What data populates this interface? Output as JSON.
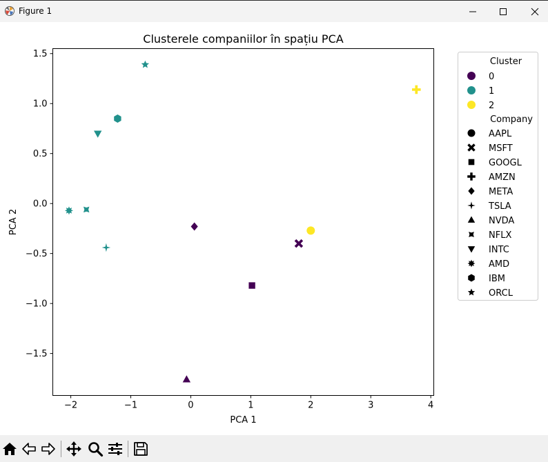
{
  "window": {
    "title": "Figure 1",
    "controls": [
      "minimize",
      "maximize",
      "close"
    ]
  },
  "toolbar": {
    "tools": [
      {
        "name": "home",
        "icon": "home-icon"
      },
      {
        "name": "back",
        "icon": "arrow-left-icon"
      },
      {
        "name": "forward",
        "icon": "arrow-right-icon"
      },
      {
        "name": "pan",
        "icon": "move-icon"
      },
      {
        "name": "zoom",
        "icon": "magnifier-icon"
      },
      {
        "name": "configure-subplots",
        "icon": "sliders-icon"
      },
      {
        "name": "save",
        "icon": "floppy-icon"
      }
    ]
  },
  "chart_data": {
    "type": "scatter",
    "title": "Clusterele companiilor în spațiu PCA",
    "xlabel": "PCA 1",
    "ylabel": "PCA 2",
    "xlim": [
      -2.3,
      4.05
    ],
    "ylim": [
      -1.92,
      1.55
    ],
    "xticks": [
      -2,
      -1,
      0,
      1,
      2,
      3,
      4
    ],
    "xtick_labels": [
      "−2",
      "−1",
      "0",
      "1",
      "2",
      "3",
      "4"
    ],
    "yticks": [
      1.5,
      1.0,
      0.5,
      0.0,
      -0.5,
      -1.0,
      -1.5
    ],
    "ytick_labels": [
      "1.5",
      "1.0",
      "0.5",
      "0.0",
      "−0.5",
      "−1.0",
      "−1.5"
    ],
    "grid": false,
    "legend_position": "outside-right",
    "cluster_colors": {
      "0": "#440154",
      "1": "#21918c",
      "2": "#fde725"
    },
    "points": [
      {
        "company": "AAPL",
        "marker": "circle",
        "cluster": 2,
        "x": 2.0,
        "y": -0.27
      },
      {
        "company": "MSFT",
        "marker": "x",
        "cluster": 0,
        "x": 1.8,
        "y": -0.4
      },
      {
        "company": "GOOGL",
        "marker": "square",
        "cluster": 0,
        "x": 1.02,
        "y": -0.82
      },
      {
        "company": "AMZN",
        "marker": "plus",
        "cluster": 2,
        "x": 3.76,
        "y": 1.14
      },
      {
        "company": "META",
        "marker": "diamond",
        "cluster": 0,
        "x": 0.06,
        "y": -0.23
      },
      {
        "company": "TSLA",
        "marker": "star4",
        "cluster": 1,
        "x": -1.41,
        "y": -0.44
      },
      {
        "company": "NVDA",
        "marker": "triangle-up",
        "cluster": 0,
        "x": -0.07,
        "y": -1.76
      },
      {
        "company": "NFLX",
        "marker": "thin-x",
        "cluster": 1,
        "x": -1.74,
        "y": -0.06
      },
      {
        "company": "INTC",
        "marker": "triangle-down",
        "cluster": 1,
        "x": -1.55,
        "y": 0.7
      },
      {
        "company": "AMD",
        "marker": "star8",
        "cluster": 1,
        "x": -2.03,
        "y": -0.07
      },
      {
        "company": "IBM",
        "marker": "hexagon",
        "cluster": 1,
        "x": -1.22,
        "y": 0.85
      },
      {
        "company": "ORCL",
        "marker": "star5",
        "cluster": 1,
        "x": -0.76,
        "y": 1.39
      }
    ],
    "legend": {
      "cluster_title": "Cluster",
      "clusters": [
        "0",
        "1",
        "2"
      ],
      "company_title": "Company",
      "companies": [
        {
          "label": "AAPL",
          "marker": "circle"
        },
        {
          "label": "MSFT",
          "marker": "x"
        },
        {
          "label": "GOOGL",
          "marker": "square"
        },
        {
          "label": "AMZN",
          "marker": "plus"
        },
        {
          "label": "META",
          "marker": "diamond"
        },
        {
          "label": "TSLA",
          "marker": "star4"
        },
        {
          "label": "NVDA",
          "marker": "triangle-up"
        },
        {
          "label": "NFLX",
          "marker": "thin-x"
        },
        {
          "label": "INTC",
          "marker": "triangle-down"
        },
        {
          "label": "AMD",
          "marker": "star8"
        },
        {
          "label": "IBM",
          "marker": "hexagon"
        },
        {
          "label": "ORCL",
          "marker": "star5"
        }
      ]
    }
  }
}
